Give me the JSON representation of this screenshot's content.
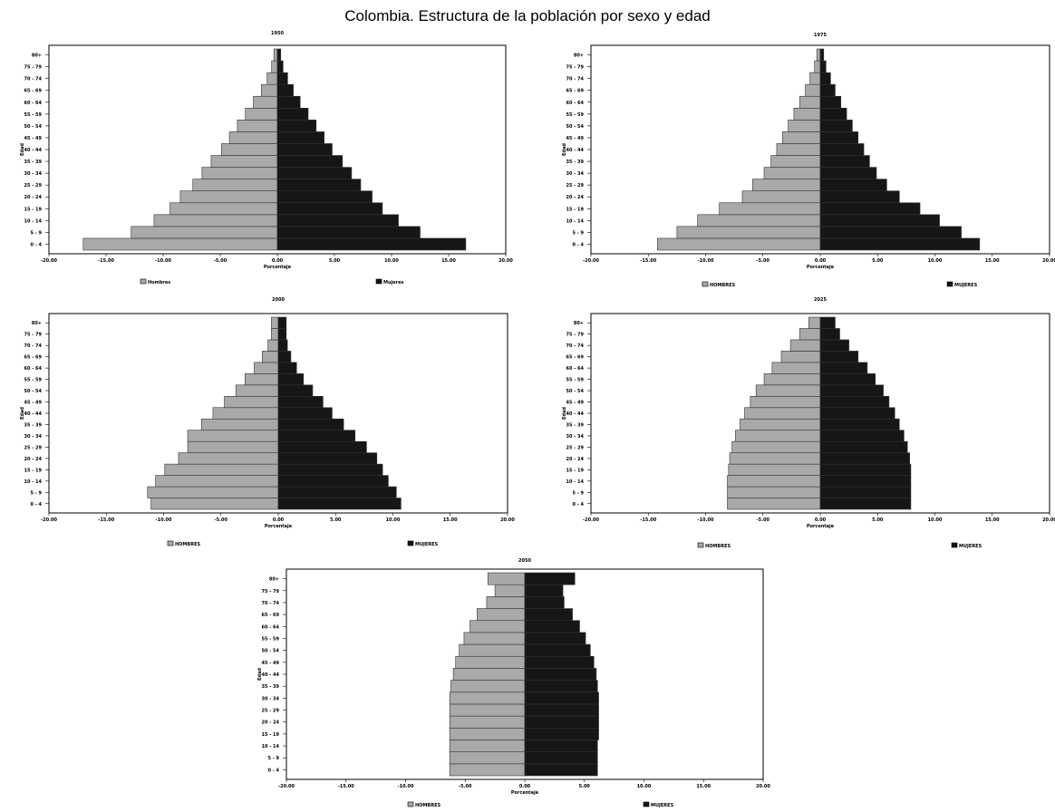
{
  "title": "Colombia. Estructura de la población por sexo y edad",
  "colors": {
    "hombres": "#a9a9a9",
    "mujeres": "#161616",
    "frame": "#000000"
  },
  "chart_data": [
    {
      "type": "bar",
      "subtype": "population-pyramid",
      "title": "1950",
      "xlabel": "Porcentaje",
      "ylabel": "Edad",
      "categories": [
        "0 - 4",
        "5 - 9",
        "10 - 14",
        "15 - 19",
        "20 - 24",
        "25 - 29",
        "30 - 34",
        "35 - 39",
        "40 - 44",
        "45 - 49",
        "50 - 54",
        "55 - 59",
        "60 - 64",
        "65 - 69",
        "70 - 74",
        "75 - 79",
        "80+"
      ],
      "xlim": [
        -20,
        20
      ],
      "x_ticks": [
        "-20.00",
        "-15.00",
        "-10.00",
        "-5.00",
        "0.00",
        "5.00",
        "10.00",
        "15.00",
        "20.00"
      ],
      "series": [
        {
          "name": "Hombres",
          "values": [
            -17.0,
            -12.8,
            -10.8,
            -9.4,
            -8.5,
            -7.4,
            -6.6,
            -5.8,
            -4.9,
            -4.2,
            -3.5,
            -2.8,
            -2.1,
            -1.4,
            -0.9,
            -0.5,
            -0.3
          ]
        },
        {
          "name": "Mujeres",
          "values": [
            16.5,
            12.5,
            10.6,
            9.2,
            8.3,
            7.3,
            6.5,
            5.7,
            4.8,
            4.1,
            3.4,
            2.7,
            2.0,
            1.4,
            0.9,
            0.5,
            0.3
          ]
        }
      ],
      "legend": [
        "Hombres",
        "Mujeres"
      ],
      "legend_position": "bottom"
    },
    {
      "type": "bar",
      "subtype": "population-pyramid",
      "title": "1975",
      "xlabel": "Porcentaje",
      "ylabel": "Edad",
      "categories": [
        "0 - 4",
        "5 - 9",
        "10 - 14",
        "15 - 19",
        "20 - 24",
        "25 - 29",
        "30 - 34",
        "35 - 39",
        "40 - 44",
        "45 - 49",
        "50 - 54",
        "55 - 59",
        "60 - 64",
        "65 - 69",
        "70 - 74",
        "75 - 79",
        "80+"
      ],
      "xlim": [
        -20,
        20
      ],
      "x_ticks": [
        "-20.00",
        "-15.00",
        "-10.00",
        "-5.00",
        "0.00",
        "5.00",
        "10.00",
        "15.00",
        "20.00"
      ],
      "series": [
        {
          "name": "HOMBRES",
          "values": [
            -14.2,
            -12.5,
            -10.7,
            -8.8,
            -6.8,
            -5.9,
            -4.9,
            -4.3,
            -3.8,
            -3.3,
            -2.8,
            -2.3,
            -1.8,
            -1.3,
            -0.9,
            -0.5,
            -0.3
          ]
        },
        {
          "name": "MUJERES",
          "values": [
            13.9,
            12.3,
            10.4,
            8.7,
            6.9,
            5.8,
            4.9,
            4.3,
            3.8,
            3.3,
            2.8,
            2.3,
            1.8,
            1.3,
            0.9,
            0.5,
            0.3
          ]
        }
      ],
      "legend": [
        "HOMBRES",
        "MUJERES"
      ],
      "legend_position": "bottom"
    },
    {
      "type": "bar",
      "subtype": "population-pyramid",
      "title": "2000",
      "xlabel": "Porcentaje",
      "ylabel": "Edad",
      "categories": [
        "0 - 4",
        "5 - 9",
        "10 - 14",
        "15 - 19",
        "20 - 24",
        "25 - 29",
        "30 - 34",
        "35 - 39",
        "40 - 44",
        "45 - 49",
        "50 - 54",
        "55 - 59",
        "60 - 64",
        "65 - 69",
        "70 - 74",
        "75 - 79",
        "80+"
      ],
      "xlim": [
        -20,
        20
      ],
      "x_ticks": [
        "-20.00",
        "-15.00",
        "-10.00",
        "-5.00",
        "0.00",
        "5.00",
        "10.00",
        "15.00",
        "20.00"
      ],
      "series": [
        {
          "name": "HOMBRES",
          "values": [
            -11.1,
            -11.4,
            -10.7,
            -9.9,
            -8.7,
            -7.9,
            -7.9,
            -6.7,
            -5.7,
            -4.7,
            -3.7,
            -2.9,
            -2.1,
            -1.4,
            -0.9,
            -0.6,
            -0.6
          ]
        },
        {
          "name": "MUJERES",
          "values": [
            10.7,
            10.3,
            9.6,
            9.1,
            8.6,
            7.7,
            6.7,
            5.7,
            4.7,
            3.9,
            3.0,
            2.2,
            1.6,
            1.1,
            0.8,
            0.7,
            0.7
          ]
        }
      ],
      "legend": [
        "HOMBRES",
        "MUJERES"
      ],
      "legend_position": "bottom"
    },
    {
      "type": "bar",
      "subtype": "population-pyramid",
      "title": "2025",
      "xlabel": "Porcentaje",
      "ylabel": "Edad",
      "categories": [
        "0 - 4",
        "5 - 9",
        "10 - 14",
        "15 - 19",
        "20 - 24",
        "25 - 29",
        "30 - 34",
        "35 - 39",
        "40 - 44",
        "45 - 49",
        "50 - 54",
        "55 - 59",
        "60 - 64",
        "65 - 69",
        "70 - 74",
        "75 - 79",
        "80+"
      ],
      "xlim": [
        -20,
        20
      ],
      "x_ticks": [
        "-20.00",
        "-15.00",
        "-10.00",
        "-5.00",
        "0.00",
        "5.00",
        "10.00",
        "15.00",
        "20.00"
      ],
      "series": [
        {
          "name": "HOMBRES",
          "values": [
            -8.1,
            -8.1,
            -8.1,
            -8.0,
            -7.9,
            -7.7,
            -7.4,
            -7.0,
            -6.6,
            -6.1,
            -5.6,
            -4.9,
            -4.2,
            -3.4,
            -2.6,
            -1.8,
            -1.0
          ]
        },
        {
          "name": "MUJERES",
          "values": [
            7.9,
            7.9,
            7.9,
            7.9,
            7.8,
            7.6,
            7.3,
            6.9,
            6.5,
            6.0,
            5.5,
            4.8,
            4.1,
            3.3,
            2.5,
            1.7,
            1.3
          ]
        }
      ],
      "legend": [
        "HOMBRES",
        "MUJERES"
      ],
      "legend_position": "bottom"
    },
    {
      "type": "bar",
      "subtype": "population-pyramid",
      "title": "2050",
      "xlabel": "Porcentaje",
      "ylabel": "Edad",
      "categories": [
        "0 - 4",
        "5 - 9",
        "10 - 14",
        "15 - 19",
        "20 - 24",
        "25 - 29",
        "30 - 34",
        "35 - 39",
        "40 - 44",
        "45 - 49",
        "50 - 54",
        "55 - 59",
        "60 - 64",
        "65 - 69",
        "70 - 74",
        "75 - 79",
        "80+"
      ],
      "xlim": [
        -20,
        20
      ],
      "x_ticks": [
        "-20.00",
        "-15.00",
        "-10.00",
        "-5.00",
        "0.00",
        "5.00",
        "10.00",
        "15.00",
        "20.00"
      ],
      "series": [
        {
          "name": "HOMBRES",
          "values": [
            -6.3,
            -6.3,
            -6.3,
            -6.3,
            -6.3,
            -6.3,
            -6.3,
            -6.2,
            -6.0,
            -5.8,
            -5.5,
            -5.1,
            -4.6,
            -4.0,
            -3.2,
            -2.5,
            -3.1
          ]
        },
        {
          "name": "MUJERES",
          "values": [
            6.1,
            6.1,
            6.1,
            6.2,
            6.2,
            6.2,
            6.2,
            6.1,
            6.0,
            5.8,
            5.5,
            5.1,
            4.6,
            4.0,
            3.3,
            3.2,
            4.2
          ]
        }
      ],
      "legend": [
        "HOMBRES",
        "MUJERES"
      ],
      "legend_position": "bottom"
    }
  ]
}
